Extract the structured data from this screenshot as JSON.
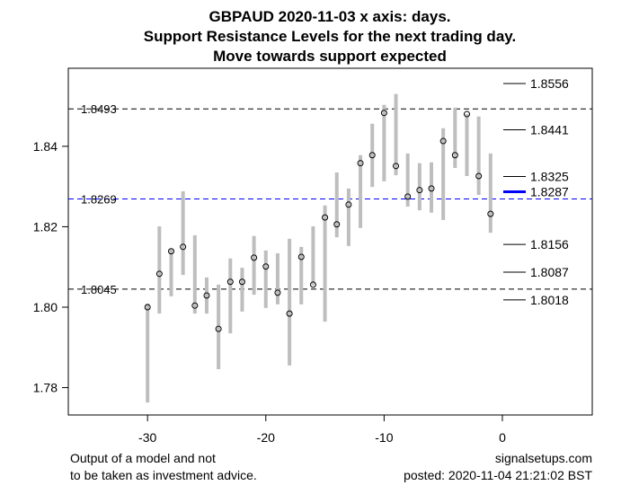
{
  "chart_data": {
    "type": "range-dot",
    "title_lines": [
      "GBPAUD 2020-11-03 x axis: days.",
      "Support Resistance Levels for the next trading day.",
      "Move towards support expected"
    ],
    "xlim": [
      -36.7,
      7.6
    ],
    "ylim": [
      1.7732,
      1.8594
    ],
    "xticks": [
      -30,
      -20,
      -10,
      0
    ],
    "yticks": [
      1.78,
      1.8,
      1.82,
      1.84
    ],
    "ytick_labels": [
      "1.78",
      "1.80",
      "1.82",
      "1.84"
    ],
    "xtick_labels": [
      "-30",
      "-20",
      "-10",
      "0"
    ],
    "days": [
      -30,
      -29,
      -28,
      -27,
      -26,
      -25,
      -24,
      -23,
      -22,
      -21,
      -20,
      -19,
      -18,
      -17,
      -16,
      -15,
      -14,
      -13,
      -12,
      -11,
      -10,
      -9,
      -8,
      -7,
      -6,
      -5,
      -4,
      -3,
      -2,
      -1
    ],
    "close": [
      1.8,
      1.8083,
      1.8139,
      1.815,
      1.8004,
      1.8029,
      1.7946,
      1.8063,
      1.8063,
      1.8123,
      1.8101,
      1.8036,
      1.7984,
      1.8125,
      1.8056,
      1.8223,
      1.8206,
      1.8255,
      1.8358,
      1.8378,
      1.8483,
      1.8351,
      1.8275,
      1.8291,
      1.8295,
      1.8413,
      1.8378,
      1.848,
      1.8326,
      1.8232
    ],
    "high": [
      1.8009,
      1.8201,
      1.8145,
      1.8288,
      1.8179,
      1.8074,
      1.8056,
      1.8121,
      1.8098,
      1.8177,
      1.8141,
      1.8134,
      1.817,
      1.815,
      1.8201,
      1.8253,
      1.8335,
      1.8295,
      1.8378,
      1.8456,
      1.8503,
      1.853,
      1.8382,
      1.8358,
      1.836,
      1.8445,
      1.8496,
      1.848,
      1.8474,
      1.8382
    ],
    "low": [
      1.7763,
      1.7984,
      1.8027,
      1.808,
      1.7984,
      1.7984,
      1.7846,
      1.7935,
      1.7989,
      1.8031,
      1.7998,
      1.8007,
      1.7855,
      1.8007,
      1.8054,
      1.7964,
      1.8174,
      1.8152,
      1.8197,
      1.8299,
      1.8313,
      1.8328,
      1.825,
      1.8241,
      1.8235,
      1.8217,
      1.8346,
      1.8326,
      1.8279,
      1.8185
    ],
    "hlines": [
      {
        "value": 1.8493,
        "label": "1.8493",
        "color": "#000000"
      },
      {
        "value": 1.8269,
        "label": "1.8269",
        "color": "#0000ff"
      },
      {
        "value": 1.8045,
        "label": "1.8045",
        "color": "#000000"
      }
    ],
    "levels": [
      {
        "value": 1.8556,
        "label": "1.8556",
        "highlight": false
      },
      {
        "value": 1.8441,
        "label": "1.8441",
        "highlight": false
      },
      {
        "value": 1.8325,
        "label": "1.8325",
        "highlight": false
      },
      {
        "value": 1.8287,
        "label": "1.8287",
        "highlight": true
      },
      {
        "value": 1.8156,
        "label": "1.8156",
        "highlight": false
      },
      {
        "value": 1.8087,
        "label": "1.8087",
        "highlight": false
      },
      {
        "value": 1.8018,
        "label": "1.8018",
        "highlight": false
      }
    ],
    "colors": {
      "bar": "#bebebe",
      "highlight": "#0000ff"
    }
  },
  "footer": {
    "left_line1": "Output of a model and not",
    "left_line2": "to be taken as investment advice.",
    "right_line1": "signalsetups.com",
    "right_line2": "posted: 2020-11-04 21:21:02 BST"
  }
}
